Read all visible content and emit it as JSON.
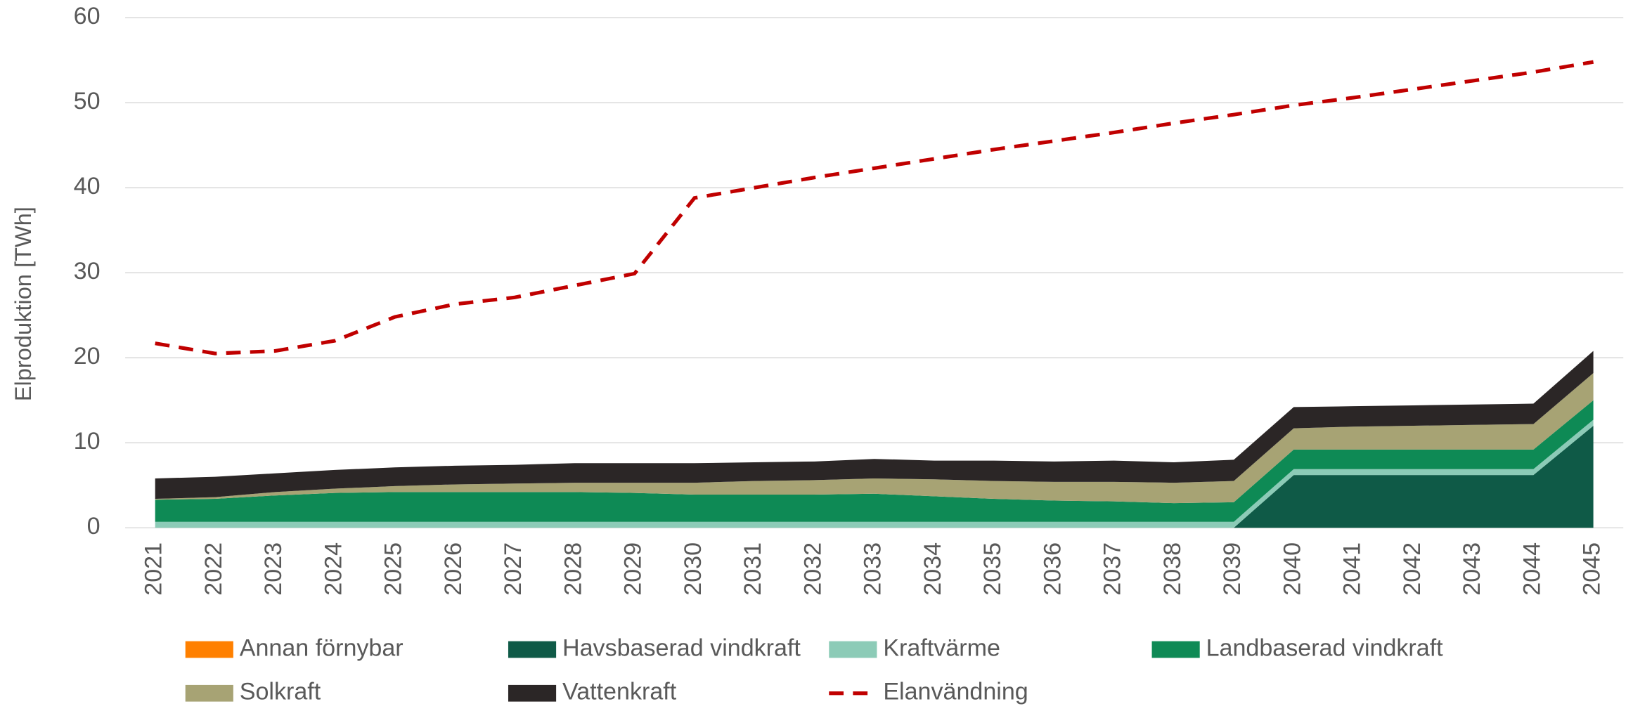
{
  "chart_data": {
    "type": "area",
    "y_label": "Elproduktion [TWh]",
    "categories": [
      "2021",
      "2022",
      "2023",
      "2024",
      "2025",
      "2026",
      "2027",
      "2028",
      "2029",
      "2030",
      "2031",
      "2032",
      "2033",
      "2034",
      "2035",
      "2036",
      "2037",
      "2038",
      "2039",
      "2040",
      "2041",
      "2042",
      "2043",
      "2044",
      "2045"
    ],
    "ylim": [
      0,
      60
    ],
    "yticks": [
      0,
      10,
      20,
      30,
      40,
      50,
      60
    ],
    "grid": true,
    "stacked": true,
    "series": [
      {
        "name": "Annan förnybar",
        "color": "#ff8000",
        "values": [
          0,
          0,
          0,
          0,
          0,
          0,
          0,
          0,
          0,
          0,
          0,
          0,
          0,
          0,
          0,
          0,
          0,
          0,
          0,
          0,
          0,
          0,
          0,
          0,
          0
        ]
      },
      {
        "name": "Havsbaserad vindkraft",
        "color": "#0f5a47",
        "values": [
          0,
          0,
          0,
          0,
          0,
          0,
          0,
          0,
          0,
          0,
          0,
          0,
          0,
          0,
          0,
          0,
          0,
          0,
          0,
          6.2,
          6.2,
          6.2,
          6.2,
          6.2,
          12.0
        ]
      },
      {
        "name": "Kraftvärme",
        "color": "#8ccbb7",
        "values": [
          0.7,
          0.7,
          0.7,
          0.7,
          0.7,
          0.7,
          0.7,
          0.7,
          0.7,
          0.7,
          0.7,
          0.7,
          0.7,
          0.7,
          0.7,
          0.7,
          0.7,
          0.7,
          0.7,
          0.7,
          0.7,
          0.7,
          0.7,
          0.7,
          0.7
        ]
      },
      {
        "name": "Landbaserad vindkraft",
        "color": "#0e8a55",
        "values": [
          2.6,
          2.7,
          3.1,
          3.4,
          3.5,
          3.5,
          3.5,
          3.5,
          3.4,
          3.2,
          3.2,
          3.2,
          3.3,
          3.0,
          2.7,
          2.5,
          2.4,
          2.2,
          2.3,
          2.3,
          2.3,
          2.3,
          2.3,
          2.3,
          2.3
        ]
      },
      {
        "name": "Solkraft",
        "color": "#a7a374",
        "values": [
          0.1,
          0.2,
          0.4,
          0.5,
          0.7,
          0.9,
          1.0,
          1.1,
          1.2,
          1.4,
          1.6,
          1.7,
          1.8,
          2.0,
          2.1,
          2.2,
          2.3,
          2.4,
          2.5,
          2.5,
          2.7,
          2.8,
          2.9,
          3.0,
          3.2
        ]
      },
      {
        "name": "Vattenkraft",
        "color": "#2b2626",
        "values": [
          2.4,
          2.4,
          2.2,
          2.2,
          2.2,
          2.2,
          2.2,
          2.3,
          2.3,
          2.3,
          2.2,
          2.2,
          2.3,
          2.2,
          2.4,
          2.4,
          2.5,
          2.4,
          2.5,
          2.5,
          2.4,
          2.4,
          2.4,
          2.4,
          2.6
        ]
      },
      {
        "name": "Elanvändning",
        "color": "#c00000",
        "type": "line",
        "style": "dashed",
        "values": [
          21.7,
          20.5,
          20.8,
          22.0,
          24.8,
          26.3,
          27.1,
          28.5,
          29.9,
          38.8,
          40.0,
          41.2,
          42.3,
          43.4,
          44.5,
          45.5,
          46.5,
          47.6,
          48.6,
          49.7,
          50.6,
          51.6,
          52.6,
          53.6,
          54.8
        ]
      }
    ]
  }
}
